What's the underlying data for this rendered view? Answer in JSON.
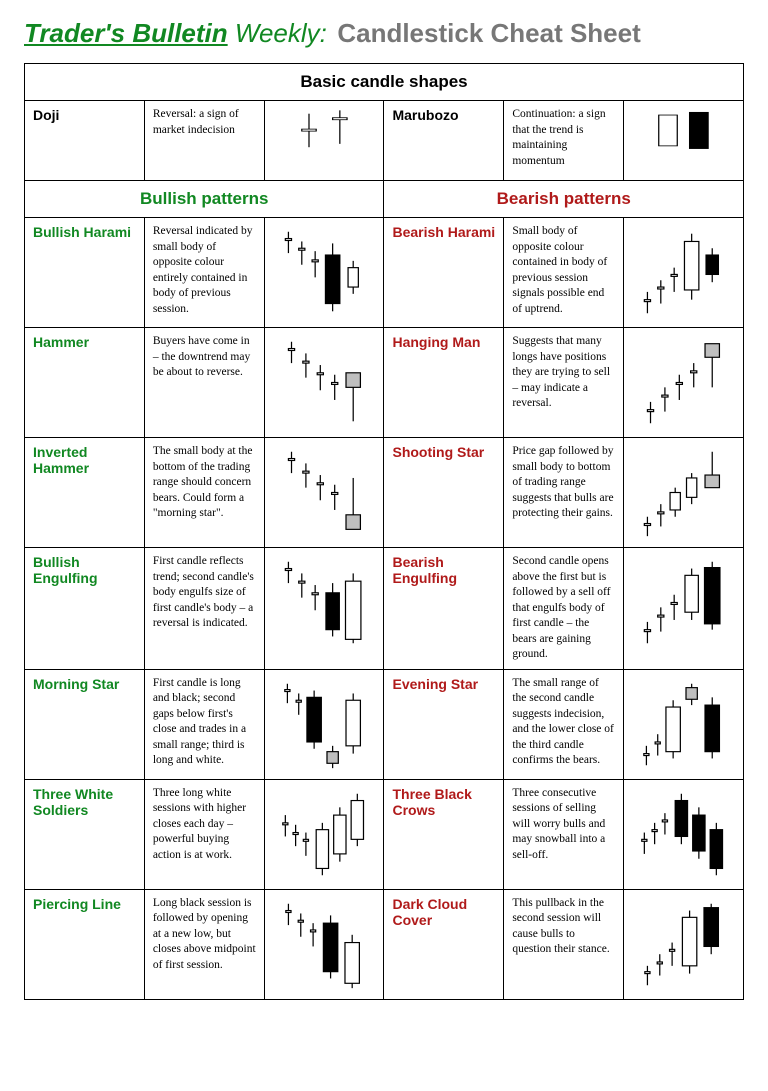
{
  "header": {
    "brand": "Trader's Bulletin",
    "weekly": " Weekly:",
    "title": "Candlestick Cheat Sheet"
  },
  "sections": {
    "basic": "Basic candle shapes",
    "bullish": "Bullish patterns",
    "bearish": "Bearish patterns"
  },
  "colors": {
    "bull": "#118822",
    "bear": "#b01a1a",
    "border": "#000000",
    "wick": "#000000",
    "white_fill": "#ffffff",
    "black_fill": "#000000",
    "gray_fill": "#bfbfbf"
  },
  "basic": [
    {
      "name": "Doji",
      "desc": "Reversal: a sign of market indecision",
      "candles": [
        {
          "x": 35,
          "hi": 10,
          "lo": 60,
          "bt": 33,
          "bb": 36,
          "fill": "#ffffff",
          "w": 14
        },
        {
          "x": 65,
          "hi": 5,
          "lo": 55,
          "bt": 16,
          "bb": 19,
          "fill": "#ffffff",
          "w": 14
        }
      ]
    },
    {
      "name": "Marubozo",
      "desc": "Continuation: a sign that the trend is maintaining momentum",
      "candles": [
        {
          "x": 35,
          "hi": 12,
          "lo": 58,
          "bt": 12,
          "bb": 58,
          "fill": "#ffffff",
          "w": 18
        },
        {
          "x": 65,
          "hi": 8,
          "lo": 62,
          "bt": 8,
          "bb": 62,
          "fill": "#000000",
          "w": 18
        }
      ]
    }
  ],
  "rows": [
    {
      "bull_name": "Bullish Harami",
      "bull_desc": "Reversal indicated by small body of opposite colour entirely contained in body of previous session.",
      "bull_candles": [
        {
          "x": 15,
          "hi": 8,
          "lo": 30,
          "bt": 15,
          "bb": 17,
          "fill": "#fff",
          "w": 6
        },
        {
          "x": 28,
          "hi": 18,
          "lo": 42,
          "bt": 25,
          "bb": 27,
          "fill": "#fff",
          "w": 6
        },
        {
          "x": 41,
          "hi": 28,
          "lo": 55,
          "bt": 37,
          "bb": 39,
          "fill": "#fff",
          "w": 6
        },
        {
          "x": 58,
          "hi": 20,
          "lo": 90,
          "bt": 32,
          "bb": 82,
          "fill": "#000",
          "w": 14
        },
        {
          "x": 78,
          "hi": 38,
          "lo": 72,
          "bt": 45,
          "bb": 65,
          "fill": "#fff",
          "w": 10
        }
      ],
      "bear_name": "Bearish Harami",
      "bear_desc": "Small body of opposite colour contained in body of previous session signals possible end of uptrend.",
      "bear_candles": [
        {
          "x": 15,
          "hi": 70,
          "lo": 92,
          "bt": 78,
          "bb": 80,
          "fill": "#fff",
          "w": 6
        },
        {
          "x": 28,
          "hi": 58,
          "lo": 82,
          "bt": 65,
          "bb": 67,
          "fill": "#fff",
          "w": 6
        },
        {
          "x": 41,
          "hi": 45,
          "lo": 70,
          "bt": 52,
          "bb": 54,
          "fill": "#fff",
          "w": 6
        },
        {
          "x": 58,
          "hi": 10,
          "lo": 78,
          "bt": 18,
          "bb": 68,
          "fill": "#fff",
          "w": 14
        },
        {
          "x": 78,
          "hi": 25,
          "lo": 60,
          "bt": 32,
          "bb": 52,
          "fill": "#000",
          "w": 12
        }
      ]
    },
    {
      "bull_name": "Hammer",
      "bull_desc": "Buyers have come in – the downtrend may be about to reverse.",
      "bull_candles": [
        {
          "x": 18,
          "hi": 8,
          "lo": 30,
          "bt": 15,
          "bb": 17,
          "fill": "#fff",
          "w": 6
        },
        {
          "x": 32,
          "hi": 20,
          "lo": 45,
          "bt": 28,
          "bb": 30,
          "fill": "#fff",
          "w": 6
        },
        {
          "x": 46,
          "hi": 32,
          "lo": 58,
          "bt": 40,
          "bb": 42,
          "fill": "#fff",
          "w": 6
        },
        {
          "x": 60,
          "hi": 42,
          "lo": 68,
          "bt": 50,
          "bb": 52,
          "fill": "#fff",
          "w": 6
        },
        {
          "x": 78,
          "hi": 40,
          "lo": 90,
          "bt": 40,
          "bb": 55,
          "fill": "#bfbfbf",
          "w": 14
        }
      ],
      "bear_name": "Hanging Man",
      "bear_desc": "Suggests that many longs have positions they are trying to sell – may indicate a reversal.",
      "bear_candles": [
        {
          "x": 18,
          "hi": 70,
          "lo": 92,
          "bt": 78,
          "bb": 80,
          "fill": "#fff",
          "w": 6
        },
        {
          "x": 32,
          "hi": 55,
          "lo": 80,
          "bt": 63,
          "bb": 65,
          "fill": "#fff",
          "w": 6
        },
        {
          "x": 46,
          "hi": 42,
          "lo": 68,
          "bt": 50,
          "bb": 52,
          "fill": "#fff",
          "w": 6
        },
        {
          "x": 60,
          "hi": 30,
          "lo": 55,
          "bt": 38,
          "bb": 40,
          "fill": "#fff",
          "w": 6
        },
        {
          "x": 78,
          "hi": 10,
          "lo": 55,
          "bt": 10,
          "bb": 24,
          "fill": "#bfbfbf",
          "w": 14
        }
      ]
    },
    {
      "bull_name": "Inverted Hammer",
      "bull_desc": "The small body at the bottom of the trading range should concern bears. Could form a \"morning star\".",
      "bull_candles": [
        {
          "x": 18,
          "hi": 8,
          "lo": 30,
          "bt": 15,
          "bb": 17,
          "fill": "#fff",
          "w": 6
        },
        {
          "x": 32,
          "hi": 20,
          "lo": 45,
          "bt": 28,
          "bb": 30,
          "fill": "#fff",
          "w": 6
        },
        {
          "x": 46,
          "hi": 32,
          "lo": 58,
          "bt": 40,
          "bb": 42,
          "fill": "#fff",
          "w": 6
        },
        {
          "x": 60,
          "hi": 42,
          "lo": 68,
          "bt": 50,
          "bb": 52,
          "fill": "#fff",
          "w": 6
        },
        {
          "x": 78,
          "hi": 35,
          "lo": 88,
          "bt": 73,
          "bb": 88,
          "fill": "#bfbfbf",
          "w": 14
        }
      ],
      "bear_name": "Shooting Star",
      "bear_desc": "Price gap followed by small body to bottom of trading range suggests that bulls are protecting their gains.",
      "bear_candles": [
        {
          "x": 15,
          "hi": 75,
          "lo": 95,
          "bt": 82,
          "bb": 84,
          "fill": "#fff",
          "w": 6
        },
        {
          "x": 28,
          "hi": 62,
          "lo": 85,
          "bt": 70,
          "bb": 72,
          "fill": "#fff",
          "w": 6
        },
        {
          "x": 42,
          "hi": 45,
          "lo": 75,
          "bt": 50,
          "bb": 68,
          "fill": "#fff",
          "w": 10
        },
        {
          "x": 58,
          "hi": 30,
          "lo": 62,
          "bt": 35,
          "bb": 55,
          "fill": "#fff",
          "w": 10
        },
        {
          "x": 78,
          "hi": 8,
          "lo": 45,
          "bt": 32,
          "bb": 45,
          "fill": "#bfbfbf",
          "w": 14
        }
      ]
    },
    {
      "bull_name": "Bullish Engulfing",
      "bull_desc": "First candle reflects trend; second candle's body engulfs size of first candle's body – a reversal is indicated.",
      "bull_candles": [
        {
          "x": 15,
          "hi": 8,
          "lo": 30,
          "bt": 15,
          "bb": 17,
          "fill": "#fff",
          "w": 6
        },
        {
          "x": 28,
          "hi": 20,
          "lo": 45,
          "bt": 28,
          "bb": 30,
          "fill": "#fff",
          "w": 6
        },
        {
          "x": 41,
          "hi": 32,
          "lo": 58,
          "bt": 40,
          "bb": 42,
          "fill": "#fff",
          "w": 6
        },
        {
          "x": 58,
          "hi": 30,
          "lo": 85,
          "bt": 40,
          "bb": 78,
          "fill": "#000",
          "w": 13
        },
        {
          "x": 78,
          "hi": 20,
          "lo": 92,
          "bt": 28,
          "bb": 88,
          "fill": "#fff",
          "w": 15
        }
      ],
      "bear_name": "Bearish Engulfing",
      "bear_desc": "Second candle opens above the first but is followed by a sell off that engulfs body of first candle – the bears are gaining ground.",
      "bear_candles": [
        {
          "x": 15,
          "hi": 70,
          "lo": 92,
          "bt": 78,
          "bb": 80,
          "fill": "#fff",
          "w": 6
        },
        {
          "x": 28,
          "hi": 55,
          "lo": 80,
          "bt": 63,
          "bb": 65,
          "fill": "#fff",
          "w": 6
        },
        {
          "x": 41,
          "hi": 42,
          "lo": 68,
          "bt": 50,
          "bb": 52,
          "fill": "#fff",
          "w": 6
        },
        {
          "x": 58,
          "hi": 15,
          "lo": 68,
          "bt": 22,
          "bb": 60,
          "fill": "#fff",
          "w": 13
        },
        {
          "x": 78,
          "hi": 8,
          "lo": 78,
          "bt": 14,
          "bb": 72,
          "fill": "#000",
          "w": 15
        }
      ]
    },
    {
      "bull_name": "Morning Star",
      "bull_desc": "First candle is long and black; second gaps below first's close and trades in a small range; third is long and white.",
      "bull_candles": [
        {
          "x": 14,
          "hi": 8,
          "lo": 28,
          "bt": 14,
          "bb": 16,
          "fill": "#fff",
          "w": 5
        },
        {
          "x": 25,
          "hi": 18,
          "lo": 40,
          "bt": 25,
          "bb": 27,
          "fill": "#fff",
          "w": 5
        },
        {
          "x": 40,
          "hi": 15,
          "lo": 75,
          "bt": 22,
          "bb": 68,
          "fill": "#000",
          "w": 14
        },
        {
          "x": 58,
          "hi": 72,
          "lo": 95,
          "bt": 78,
          "bb": 90,
          "fill": "#bfbfbf",
          "w": 11
        },
        {
          "x": 78,
          "hi": 18,
          "lo": 80,
          "bt": 25,
          "bb": 72,
          "fill": "#fff",
          "w": 14
        }
      ],
      "bear_name": "Evening Star",
      "bear_desc": "The small range of the second candle suggests indecision, and the lower close of the third candle confirms the bears.",
      "bear_candles": [
        {
          "x": 14,
          "hi": 72,
          "lo": 92,
          "bt": 80,
          "bb": 82,
          "fill": "#fff",
          "w": 5
        },
        {
          "x": 25,
          "hi": 60,
          "lo": 82,
          "bt": 68,
          "bb": 70,
          "fill": "#fff",
          "w": 5
        },
        {
          "x": 40,
          "hi": 25,
          "lo": 85,
          "bt": 32,
          "bb": 78,
          "fill": "#fff",
          "w": 14
        },
        {
          "x": 58,
          "hi": 8,
          "lo": 30,
          "bt": 12,
          "bb": 24,
          "fill": "#bfbfbf",
          "w": 11
        },
        {
          "x": 78,
          "hi": 22,
          "lo": 85,
          "bt": 30,
          "bb": 78,
          "fill": "#000",
          "w": 14
        }
      ]
    },
    {
      "bull_name": "Three White Soldiers",
      "bull_desc": "Three long white sessions with higher closes each day –powerful buying action is at work.",
      "bull_candles": [
        {
          "x": 12,
          "hi": 30,
          "lo": 52,
          "bt": 38,
          "bb": 40,
          "fill": "#fff",
          "w": 5
        },
        {
          "x": 22,
          "hi": 40,
          "lo": 62,
          "bt": 48,
          "bb": 50,
          "fill": "#fff",
          "w": 5
        },
        {
          "x": 32,
          "hi": 48,
          "lo": 72,
          "bt": 55,
          "bb": 57,
          "fill": "#fff",
          "w": 5
        },
        {
          "x": 48,
          "hi": 38,
          "lo": 92,
          "bt": 45,
          "bb": 85,
          "fill": "#fff",
          "w": 12
        },
        {
          "x": 65,
          "hi": 22,
          "lo": 78,
          "bt": 30,
          "bb": 70,
          "fill": "#fff",
          "w": 12
        },
        {
          "x": 82,
          "hi": 8,
          "lo": 62,
          "bt": 15,
          "bb": 55,
          "fill": "#fff",
          "w": 12
        }
      ],
      "bear_name": "Three Black Crows",
      "bear_desc": "Three consecutive sessions of selling will worry bulls and may snowball into a sell-off.",
      "bear_candles": [
        {
          "x": 12,
          "hi": 48,
          "lo": 70,
          "bt": 55,
          "bb": 57,
          "fill": "#fff",
          "w": 5
        },
        {
          "x": 22,
          "hi": 38,
          "lo": 60,
          "bt": 45,
          "bb": 47,
          "fill": "#fff",
          "w": 5
        },
        {
          "x": 32,
          "hi": 28,
          "lo": 50,
          "bt": 35,
          "bb": 37,
          "fill": "#fff",
          "w": 5
        },
        {
          "x": 48,
          "hi": 8,
          "lo": 60,
          "bt": 15,
          "bb": 52,
          "fill": "#000",
          "w": 12
        },
        {
          "x": 65,
          "hi": 22,
          "lo": 75,
          "bt": 30,
          "bb": 67,
          "fill": "#000",
          "w": 12
        },
        {
          "x": 82,
          "hi": 38,
          "lo": 92,
          "bt": 45,
          "bb": 85,
          "fill": "#000",
          "w": 12
        }
      ]
    },
    {
      "bull_name": "Piercing Line",
      "bull_desc": "Long black session is followed by opening at a new low, but closes above midpoint of first session.",
      "bull_candles": [
        {
          "x": 15,
          "hi": 8,
          "lo": 30,
          "bt": 15,
          "bb": 17,
          "fill": "#fff",
          "w": 5
        },
        {
          "x": 27,
          "hi": 18,
          "lo": 42,
          "bt": 25,
          "bb": 27,
          "fill": "#fff",
          "w": 5
        },
        {
          "x": 39,
          "hi": 28,
          "lo": 52,
          "bt": 35,
          "bb": 37,
          "fill": "#fff",
          "w": 5
        },
        {
          "x": 56,
          "hi": 20,
          "lo": 85,
          "bt": 28,
          "bb": 78,
          "fill": "#000",
          "w": 14
        },
        {
          "x": 77,
          "hi": 40,
          "lo": 95,
          "bt": 48,
          "bb": 90,
          "fill": "#fff",
          "w": 14
        }
      ],
      "bear_name": "Dark Cloud Cover",
      "bear_desc": "This pullback in the second session will cause bulls to question their stance.",
      "bear_candles": [
        {
          "x": 15,
          "hi": 72,
          "lo": 92,
          "bt": 78,
          "bb": 80,
          "fill": "#fff",
          "w": 5
        },
        {
          "x": 27,
          "hi": 60,
          "lo": 82,
          "bt": 68,
          "bb": 70,
          "fill": "#fff",
          "w": 5
        },
        {
          "x": 39,
          "hi": 48,
          "lo": 72,
          "bt": 55,
          "bb": 57,
          "fill": "#fff",
          "w": 5
        },
        {
          "x": 56,
          "hi": 15,
          "lo": 80,
          "bt": 22,
          "bb": 72,
          "fill": "#fff",
          "w": 14
        },
        {
          "x": 77,
          "hi": 8,
          "lo": 60,
          "bt": 12,
          "bb": 52,
          "fill": "#000",
          "w": 14
        }
      ]
    }
  ]
}
